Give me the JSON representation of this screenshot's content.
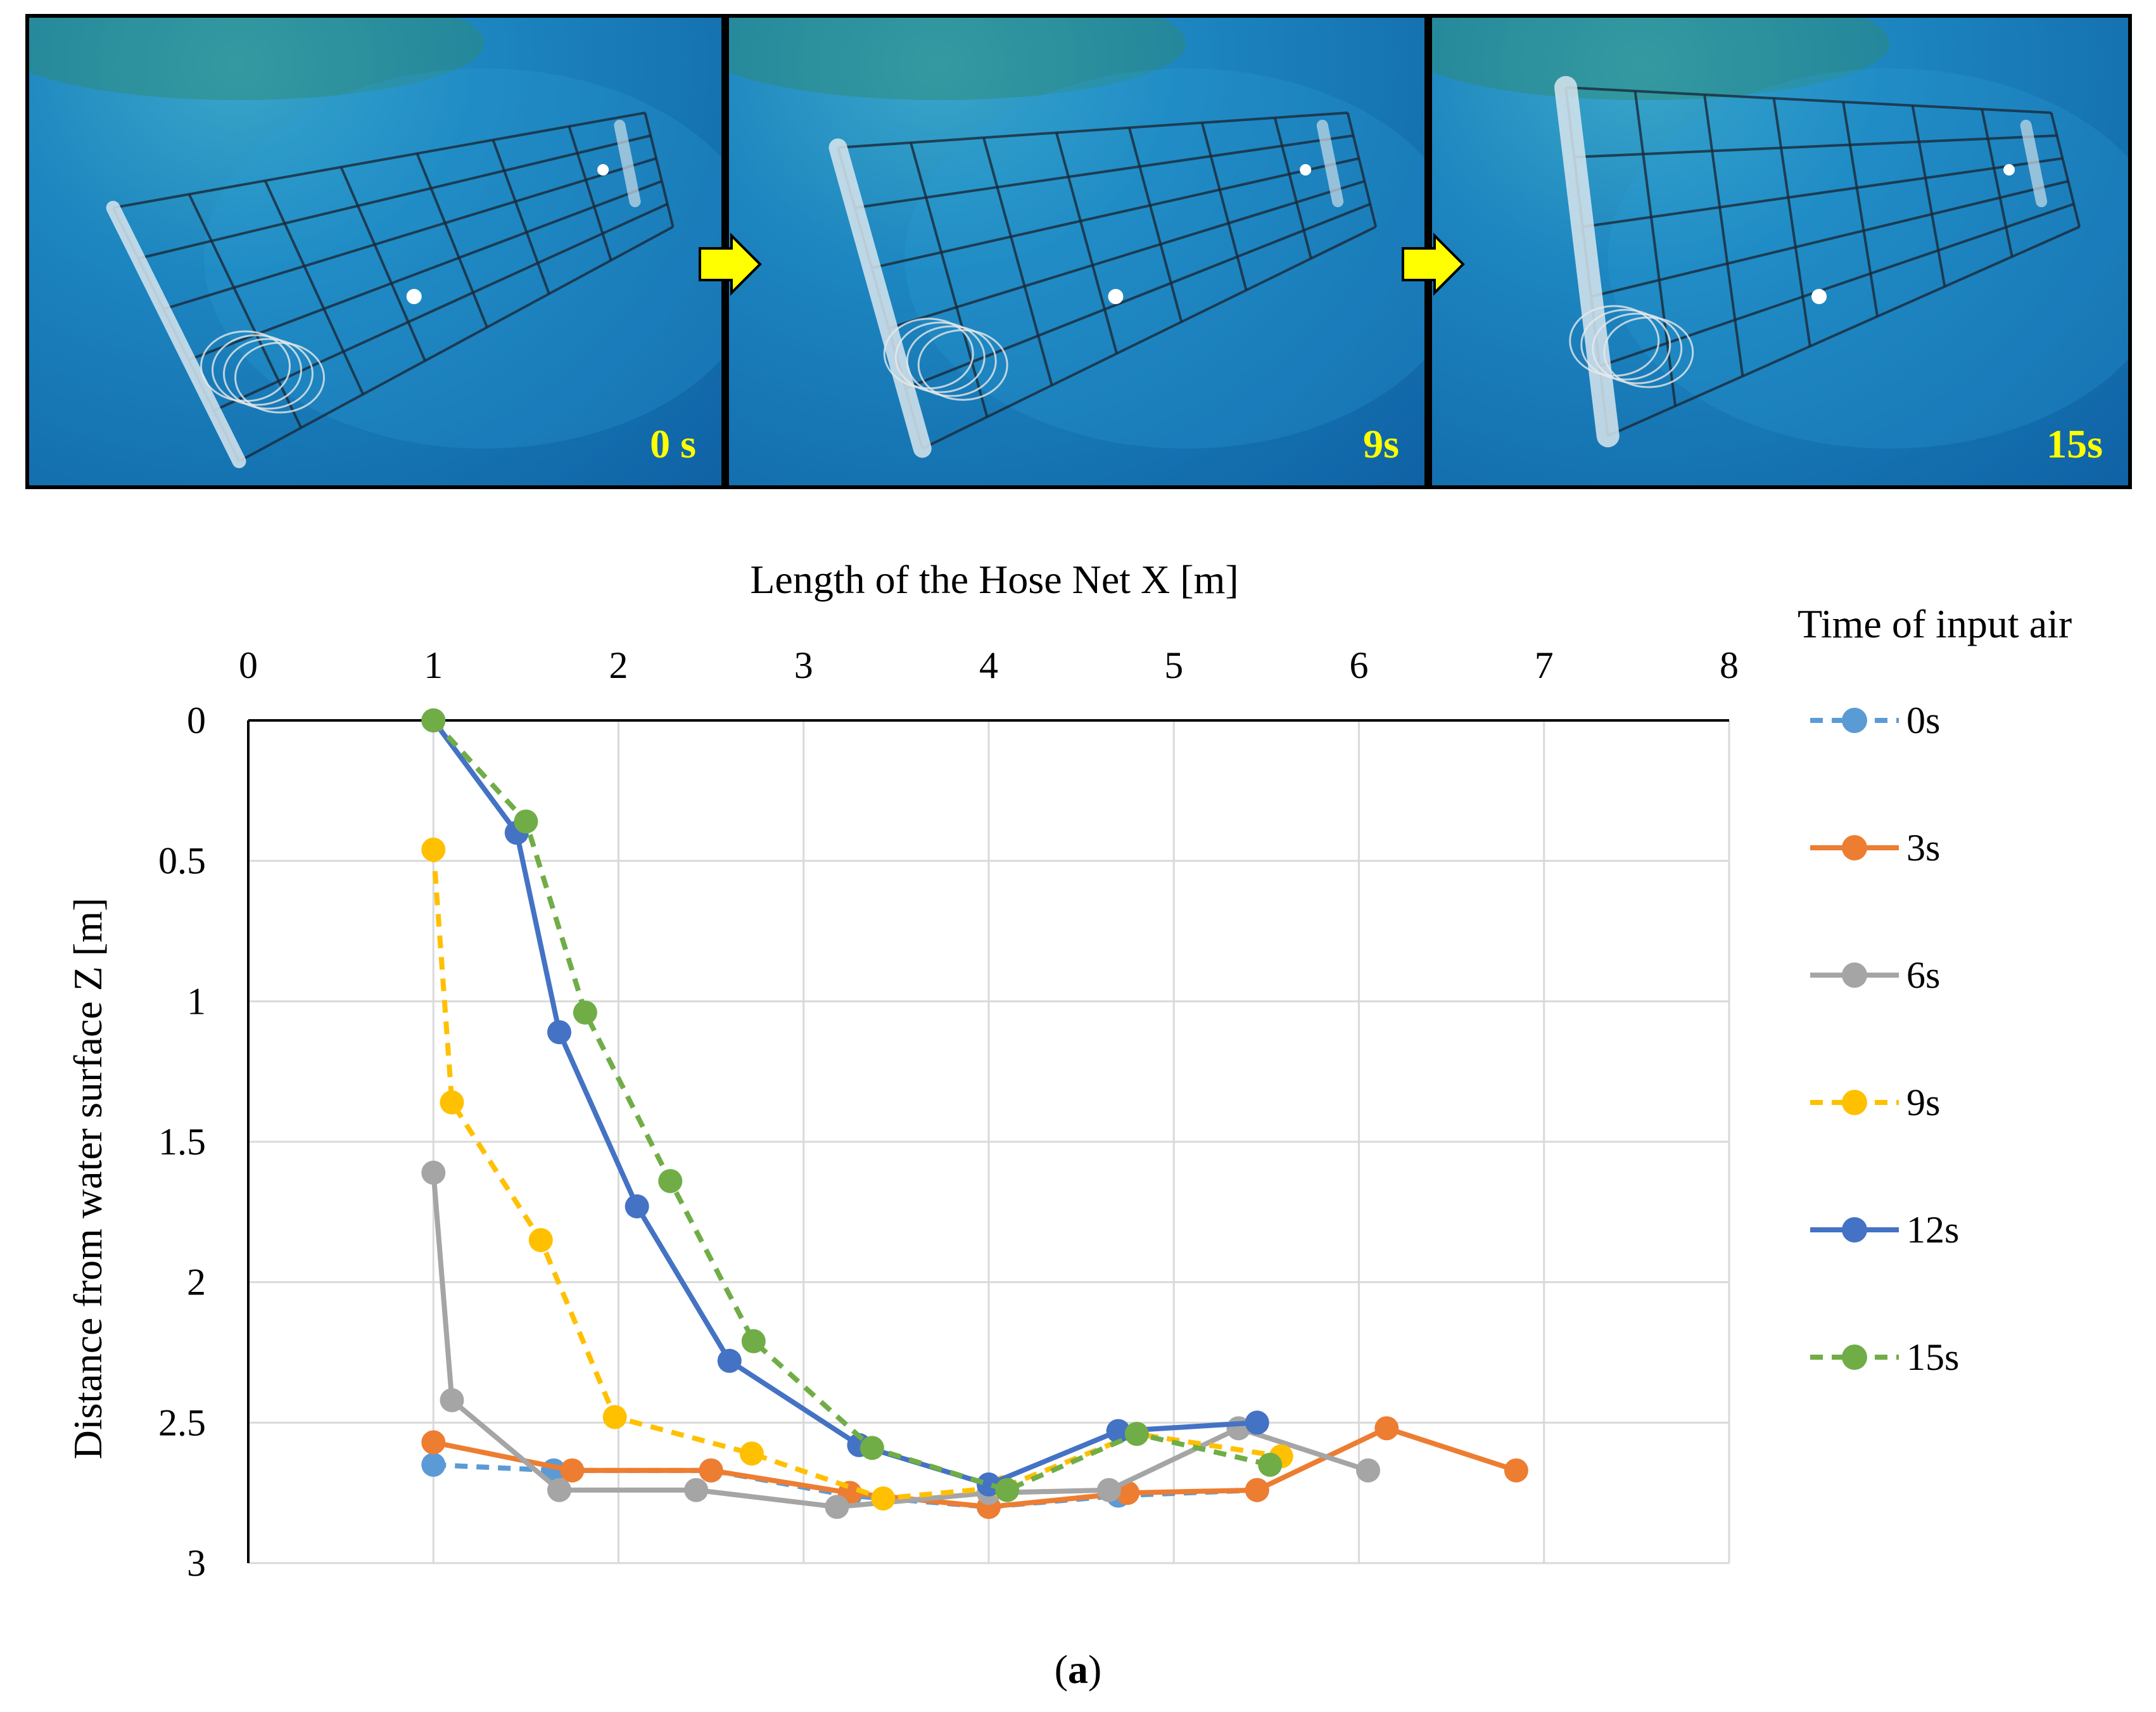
{
  "photos": [
    {
      "time_label": "0 s",
      "hose_sag": 0.0
    },
    {
      "time_label": "9s",
      "hose_sag": 0.5
    },
    {
      "time_label": "15s",
      "hose_sag": 1.0
    }
  ],
  "caption": {
    "open": "(",
    "letter": "a",
    "close": ")"
  },
  "colors": {
    "0s": "#5b9bd5",
    "3s": "#ed7d31",
    "6s": "#a5a5a5",
    "9s": "#ffc000",
    "12s": "#4472c4",
    "15s": "#70ad47",
    "arrow": "#ffff00",
    "grid": "#d9d9d9"
  },
  "chart_data": {
    "type": "line",
    "title": "",
    "xlabel": "Length of the Hose Net X [m]",
    "ylabel": "Distance from water surface Z [m]",
    "x_axis_position": "top",
    "y_axis_reversed": true,
    "xlim": [
      0,
      8
    ],
    "ylim": [
      0,
      3
    ],
    "x_ticks": [
      "0",
      "1",
      "2",
      "3",
      "4",
      "5",
      "6",
      "7",
      "8"
    ],
    "y_ticks": [
      "0",
      "0.5",
      "1",
      "1.5",
      "2",
      "2.5",
      "3"
    ],
    "legend_title": "Time of input air",
    "legend_position": "right",
    "grid": true,
    "series": [
      {
        "name": "0s",
        "dashed": true,
        "points": [
          [
            1.0,
            2.65
          ],
          [
            1.65,
            2.67
          ],
          [
            2.5,
            2.67
          ],
          [
            3.25,
            2.76
          ],
          [
            4.0,
            2.8
          ],
          [
            4.7,
            2.76
          ],
          [
            5.45,
            2.74
          ]
        ]
      },
      {
        "name": "3s",
        "dashed": false,
        "points": [
          [
            1.0,
            2.57
          ],
          [
            1.75,
            2.67
          ],
          [
            2.5,
            2.67
          ],
          [
            3.25,
            2.75
          ],
          [
            4.0,
            2.8
          ],
          [
            4.75,
            2.75
          ],
          [
            5.45,
            2.74
          ],
          [
            6.15,
            2.52
          ],
          [
            6.85,
            2.67
          ]
        ]
      },
      {
        "name": "6s",
        "dashed": false,
        "points": [
          [
            1.0,
            1.61
          ],
          [
            1.1,
            2.42
          ],
          [
            1.68,
            2.74
          ],
          [
            2.42,
            2.74
          ],
          [
            3.18,
            2.8
          ],
          [
            4.0,
            2.75
          ],
          [
            4.65,
            2.74
          ],
          [
            5.35,
            2.52
          ],
          [
            6.05,
            2.67
          ]
        ]
      },
      {
        "name": "9s",
        "dashed": true,
        "points": [
          [
            1.0,
            0.46
          ],
          [
            1.1,
            1.36
          ],
          [
            1.58,
            1.85
          ],
          [
            1.98,
            2.48
          ],
          [
            2.72,
            2.61
          ],
          [
            3.43,
            2.77
          ],
          [
            4.08,
            2.73
          ],
          [
            4.8,
            2.54
          ],
          [
            5.58,
            2.62
          ]
        ]
      },
      {
        "name": "12s",
        "dashed": false,
        "points": [
          [
            1.0,
            0.0
          ],
          [
            1.45,
            0.4
          ],
          [
            1.68,
            1.11
          ],
          [
            2.1,
            1.73
          ],
          [
            2.6,
            2.28
          ],
          [
            3.3,
            2.58
          ],
          [
            4.0,
            2.72
          ],
          [
            4.7,
            2.53
          ],
          [
            5.45,
            2.5
          ]
        ]
      },
      {
        "name": "15s",
        "dashed": true,
        "points": [
          [
            1.0,
            0.0
          ],
          [
            1.5,
            0.36
          ],
          [
            1.82,
            1.04
          ],
          [
            2.28,
            1.64
          ],
          [
            2.73,
            2.21
          ],
          [
            3.37,
            2.59
          ],
          [
            4.1,
            2.74
          ],
          [
            4.8,
            2.54
          ],
          [
            5.52,
            2.65
          ]
        ]
      }
    ]
  }
}
